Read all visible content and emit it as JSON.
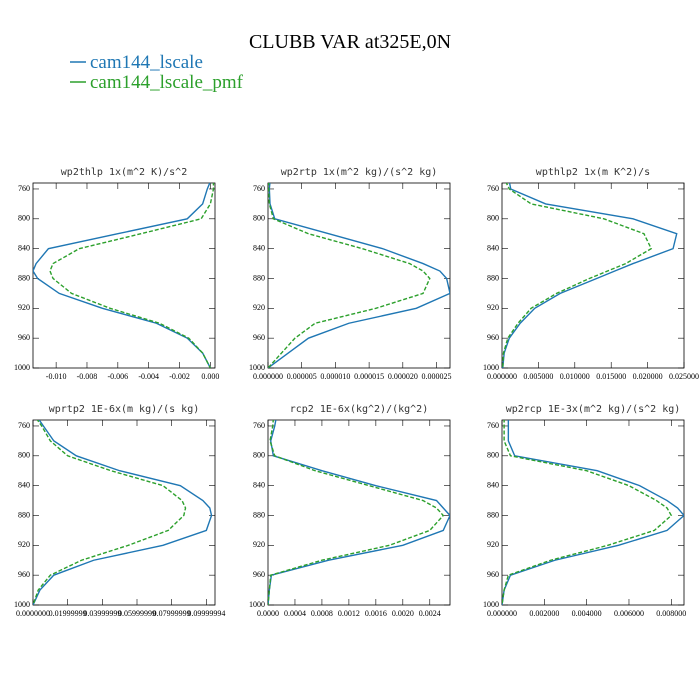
{
  "title": "CLUBB VAR at325E,0N",
  "chart_data": [
    {
      "type": "line",
      "title": "wp2thlp  1x(m^2 K)/s^2",
      "y": [
        750,
        760,
        780,
        800,
        820,
        840,
        860,
        870,
        880,
        900,
        920,
        940,
        960,
        980,
        1000
      ],
      "series": [
        {
          "name": "cam144_lscale",
          "color": "#1f77b4",
          "values": [
            0.0,
            -0.0002,
            -0.0005,
            -0.0015,
            -0.006,
            -0.0105,
            -0.0113,
            -0.0115,
            -0.0112,
            -0.0098,
            -0.007,
            -0.0035,
            -0.0015,
            -0.0005,
            0.0
          ]
        },
        {
          "name": "cam144_lscale_pmf",
          "color": "#2ca02c",
          "dashed": true,
          "values": [
            0.0002,
            0.0002,
            0.0,
            -0.0006,
            -0.0045,
            -0.0085,
            -0.0102,
            -0.0104,
            -0.0102,
            -0.009,
            -0.0065,
            -0.0033,
            -0.0014,
            -0.0005,
            0.0
          ]
        }
      ],
      "xlim": [
        -0.0115,
        0.0003
      ],
      "xticks": [
        {
          "value": -0.01,
          "label": "-0.010"
        },
        {
          "value": -0.008,
          "label": "-0.008"
        },
        {
          "value": -0.006,
          "label": "-0.006"
        },
        {
          "value": -0.004,
          "label": "-0.004"
        },
        {
          "value": -0.002,
          "label": "-0.002"
        },
        {
          "value": 0,
          "label": "0.000"
        }
      ],
      "ylim": [
        1000,
        752
      ],
      "yticks": [
        760,
        800,
        840,
        880,
        920,
        960,
        1000
      ]
    },
    {
      "type": "line",
      "title": "wp2rtp  1x(m^2 kg)/(s^2 kg)",
      "y": [
        750,
        760,
        780,
        800,
        820,
        840,
        860,
        870,
        880,
        900,
        920,
        940,
        960,
        980,
        1000
      ],
      "series": [
        {
          "name": "cam144_lscale",
          "color": "#1f77b4",
          "values": [
            3e-07,
            2e-07,
            3e-07,
            1e-06,
            9e-06,
            1.7e-05,
            2.3e-05,
            2.55e-05,
            2.65e-05,
            2.7e-05,
            2.2e-05,
            1.2e-05,
            6e-06,
            3e-06,
            0.0
          ]
        },
        {
          "name": "cam144_lscale_pmf",
          "color": "#2ca02c",
          "dashed": true,
          "values": [
            1e-07,
            1e-07,
            2e-07,
            8e-07,
            6e-06,
            1.4e-05,
            2.1e-05,
            2.3e-05,
            2.4e-05,
            2.3e-05,
            1.6e-05,
            7e-06,
            4e-06,
            2e-06,
            0.0
          ]
        }
      ],
      "xlim": [
        0,
        2.7e-05
      ],
      "xticks": [
        {
          "value": 0,
          "label": "0.000000"
        },
        {
          "value": 5e-06,
          "label": "0.000005"
        },
        {
          "value": 1e-05,
          "label": "0.000010"
        },
        {
          "value": 1.5e-05,
          "label": "0.000015"
        },
        {
          "value": 2e-05,
          "label": "0.000020"
        },
        {
          "value": 2.5e-05,
          "label": "0.000025"
        }
      ],
      "ylim": [
        1000,
        752
      ],
      "yticks": [
        760,
        800,
        840,
        880,
        920,
        960,
        1000
      ]
    },
    {
      "type": "line",
      "title": "wpthlp2  1x(m K^2)/s",
      "y": [
        750,
        760,
        780,
        800,
        820,
        840,
        860,
        870,
        880,
        900,
        920,
        940,
        960,
        980,
        1000
      ],
      "series": [
        {
          "name": "cam144_lscale",
          "color": "#1f77b4",
          "values": [
            0.001,
            0.0012,
            0.006,
            0.018,
            0.024,
            0.0235,
            0.018,
            0.0155,
            0.013,
            0.008,
            0.0045,
            0.0025,
            0.001,
            0.0003,
            0.0001
          ]
        },
        {
          "name": "cam144_lscale_pmf",
          "color": "#2ca02c",
          "dashed": true,
          "values": [
            0.0005,
            0.001,
            0.004,
            0.014,
            0.0195,
            0.0205,
            0.017,
            0.0145,
            0.012,
            0.0075,
            0.004,
            0.0022,
            0.0008,
            0.0002,
            0.0001
          ]
        }
      ],
      "xlim": [
        0,
        0.025
      ],
      "xticks": [
        {
          "value": 0,
          "label": "0.000000"
        },
        {
          "value": 0.005,
          "label": "0.005000"
        },
        {
          "value": 0.01,
          "label": "0.010000"
        },
        {
          "value": 0.015,
          "label": "0.015000"
        },
        {
          "value": 0.02,
          "label": "0.020000"
        },
        {
          "value": 0.025,
          "label": "0.025000"
        }
      ],
      "ylim": [
        1000,
        752
      ],
      "yticks": [
        760,
        800,
        840,
        880,
        920,
        960,
        1000
      ]
    },
    {
      "type": "line",
      "title": "wprtp2  1E-6x(m kg)/(s kg)",
      "y": [
        750,
        760,
        780,
        800,
        820,
        840,
        860,
        870,
        880,
        900,
        920,
        940,
        960,
        980,
        1000
      ],
      "series": [
        {
          "name": "cam144_lscale",
          "color": "#1f77b4",
          "values": [
            0.003,
            0.006,
            0.012,
            0.025,
            0.05,
            0.085,
            0.098,
            0.102,
            0.103,
            0.1,
            0.075,
            0.035,
            0.012,
            0.004,
            0.0
          ]
        },
        {
          "name": "cam144_lscale_pmf",
          "color": "#2ca02c",
          "dashed": true,
          "values": [
            0.002,
            0.005,
            0.01,
            0.02,
            0.045,
            0.075,
            0.086,
            0.088,
            0.087,
            0.078,
            0.055,
            0.028,
            0.01,
            0.003,
            0.0
          ]
        }
      ],
      "xlim": [
        0,
        0.105
      ],
      "xticks": [
        {
          "value": 0,
          "label": "0.0000000"
        },
        {
          "value": 0.02,
          "label": "0.01999999"
        },
        {
          "value": 0.04,
          "label": "0.03999999"
        },
        {
          "value": 0.06,
          "label": "0.05999999"
        },
        {
          "value": 0.08,
          "label": "0.07999999"
        },
        {
          "value": 0.1,
          "label": "0.09999994"
        }
      ],
      "ylim": [
        1000,
        752
      ],
      "yticks": [
        760,
        800,
        840,
        880,
        920,
        960,
        1000
      ]
    },
    {
      "type": "line",
      "title": "rcp2  1E-6x(kg^2)/(kg^2)",
      "y": [
        750,
        760,
        780,
        800,
        820,
        840,
        860,
        870,
        880,
        900,
        920,
        940,
        960,
        980,
        1000
      ],
      "series": [
        {
          "name": "cam144_lscale",
          "color": "#1f77b4",
          "values": [
            0.00012,
            0.0001,
            4e-05,
            8e-05,
            0.0008,
            0.0016,
            0.0025,
            0.0026,
            0.0027,
            0.0026,
            0.002,
            0.0009,
            5e-05,
            2e-05,
            0.0
          ]
        },
        {
          "name": "cam144_lscale_pmf",
          "color": "#2ca02c",
          "dashed": true,
          "values": [
            8e-05,
            7e-05,
            3e-05,
            0.0001,
            0.0007,
            0.0015,
            0.0023,
            0.0025,
            0.0026,
            0.0024,
            0.0018,
            0.0008,
            4e-05,
            2e-05,
            0.0
          ]
        }
      ],
      "xlim": [
        0,
        0.0027
      ],
      "xticks": [
        {
          "value": 0,
          "label": "0.0000"
        },
        {
          "value": 0.0004,
          "label": "0.0004"
        },
        {
          "value": 0.0008,
          "label": "0.0008"
        },
        {
          "value": 0.0012,
          "label": "0.0012"
        },
        {
          "value": 0.0016,
          "label": "0.0016"
        },
        {
          "value": 0.002,
          "label": "0.0020"
        },
        {
          "value": 0.0024,
          "label": "0.0024"
        }
      ],
      "ylim": [
        1000,
        752
      ],
      "yticks": [
        760,
        800,
        840,
        880,
        920,
        960,
        1000
      ]
    },
    {
      "type": "line",
      "title": "wp2rcp  1E-3x(m^2 kg)/(s^2 kg)",
      "y": [
        750,
        760,
        780,
        800,
        820,
        840,
        860,
        870,
        880,
        900,
        920,
        940,
        960,
        980,
        1000
      ],
      "series": [
        {
          "name": "cam144_lscale",
          "color": "#1f77b4",
          "values": [
            0.0003,
            0.0003,
            0.0003,
            0.0006,
            0.0045,
            0.0065,
            0.0078,
            0.0083,
            0.0086,
            0.0078,
            0.0055,
            0.0025,
            0.0004,
            0.0001,
            0.0
          ]
        },
        {
          "name": "cam144_lscale_pmf",
          "color": "#2ca02c",
          "dashed": true,
          "values": [
            0.0001,
            0.0001,
            0.0001,
            0.0004,
            0.004,
            0.006,
            0.0073,
            0.0078,
            0.008,
            0.0072,
            0.005,
            0.0023,
            0.0003,
            0.0001,
            0.0
          ]
        }
      ],
      "xlim": [
        0,
        0.0086
      ],
      "xticks": [
        {
          "value": 0,
          "label": "0.000000"
        },
        {
          "value": 0.002,
          "label": "0.002000"
        },
        {
          "value": 0.004,
          "label": "0.004000"
        },
        {
          "value": 0.006,
          "label": "0.006000"
        },
        {
          "value": 0.008,
          "label": "0.008000"
        }
      ],
      "ylim": [
        1000,
        752
      ],
      "yticks": [
        760,
        800,
        840,
        880,
        920,
        960,
        1000
      ]
    }
  ]
}
